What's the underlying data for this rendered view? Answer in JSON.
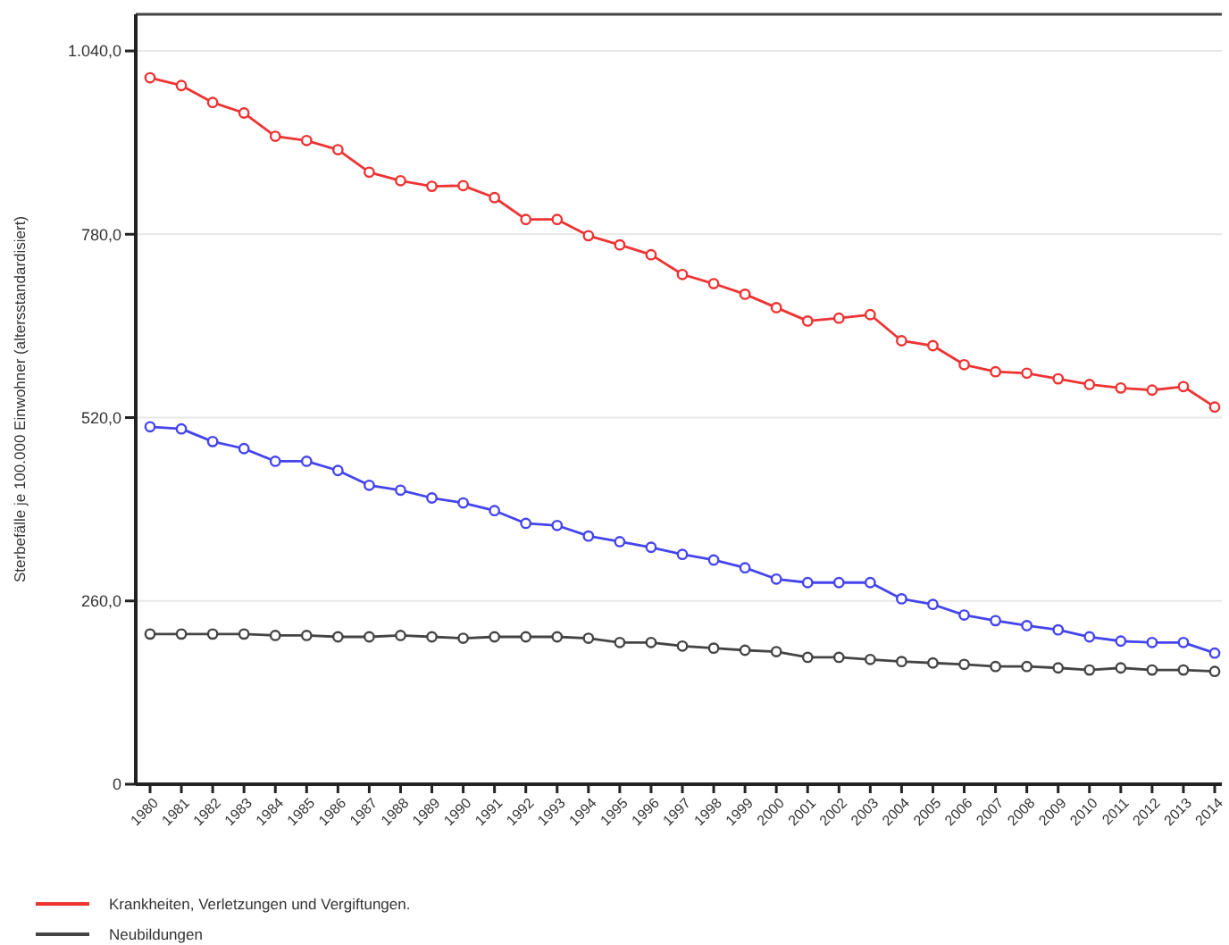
{
  "chart_data": {
    "type": "line",
    "ylabel": "Sterbefälle je 100.000 Einwohner (altersstandardisiert)",
    "categories": [
      "1980",
      "1981",
      "1982",
      "1983",
      "1984",
      "1985",
      "1986",
      "1987",
      "1988",
      "1989",
      "1990",
      "1991",
      "1992",
      "1993",
      "1994",
      "1995",
      "1996",
      "1997",
      "1998",
      "1999",
      "2000",
      "2001",
      "2002",
      "2003",
      "2004",
      "2005",
      "2006",
      "2007",
      "2008",
      "2009",
      "2010",
      "2011",
      "2012",
      "2013",
      "2014"
    ],
    "series": [
      {
        "name": "Krankheiten, Verletzungen und Vergiftungen.",
        "color": "#ee3333",
        "values": [
          1002,
          991,
          967,
          952,
          919,
          913,
          900,
          868,
          856,
          848,
          849,
          832,
          801,
          801,
          778,
          765,
          751,
          723,
          710,
          695,
          676,
          657,
          661,
          666,
          629,
          622,
          595,
          585,
          583,
          575,
          567,
          562,
          559,
          564,
          535
        ]
      },
      {
        "color": "#4444ee",
        "values": [
          507,
          504,
          486,
          476,
          458,
          458,
          445,
          424,
          417,
          406,
          399,
          388,
          370,
          367,
          352,
          344,
          336,
          326,
          318,
          307,
          291,
          286,
          286,
          286,
          263,
          255,
          240,
          232,
          225,
          219,
          209,
          203,
          201,
          201,
          186
        ]
      },
      {
        "name": "Neubildungen",
        "color": "#444444",
        "values": [
          213,
          213,
          213,
          213,
          211,
          211,
          209,
          209,
          211,
          209,
          207,
          209,
          209,
          209,
          207,
          201,
          201,
          196,
          193,
          190,
          188,
          180,
          180,
          177,
          174,
          172,
          170,
          167,
          167,
          165,
          162,
          165,
          162,
          162,
          160
        ]
      }
    ],
    "ylim": [
      0,
      1092
    ],
    "yticks": [
      0,
      {
        "value": 260,
        "label": "260,0"
      },
      {
        "value": 520,
        "label": "520,0"
      },
      {
        "value": 780,
        "label": "780,0"
      },
      {
        "value": 1040,
        "label": "1.040,0"
      }
    ],
    "grid": "y",
    "legend": "bottom left",
    "marker": "circle",
    "line_style": "solid"
  }
}
